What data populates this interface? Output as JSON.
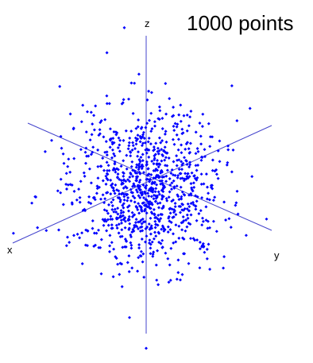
{
  "title": "1000 points",
  "chart_data": {
    "type": "scatter",
    "title": "1000 points",
    "axes": [
      "x",
      "y",
      "z"
    ],
    "series": [
      {
        "point_count": 1000,
        "distribution": "3D Gaussian",
        "x_range": [
          -5,
          5
        ],
        "y_range": [
          -5,
          5
        ]
      }
    ],
    "colors": {
      "points": "#0000ff",
      "axes": "#4444cc"
    },
    "sample_outliers": [
      {
        "x": 2.6,
        "y": 1.3
      },
      {
        "x": 1.9,
        "y": 1.8
      },
      {
        "x": 0.0,
        "y": -4.5
      }
    ]
  },
  "labels": {
    "x": "x",
    "y": "y",
    "z": "z"
  }
}
